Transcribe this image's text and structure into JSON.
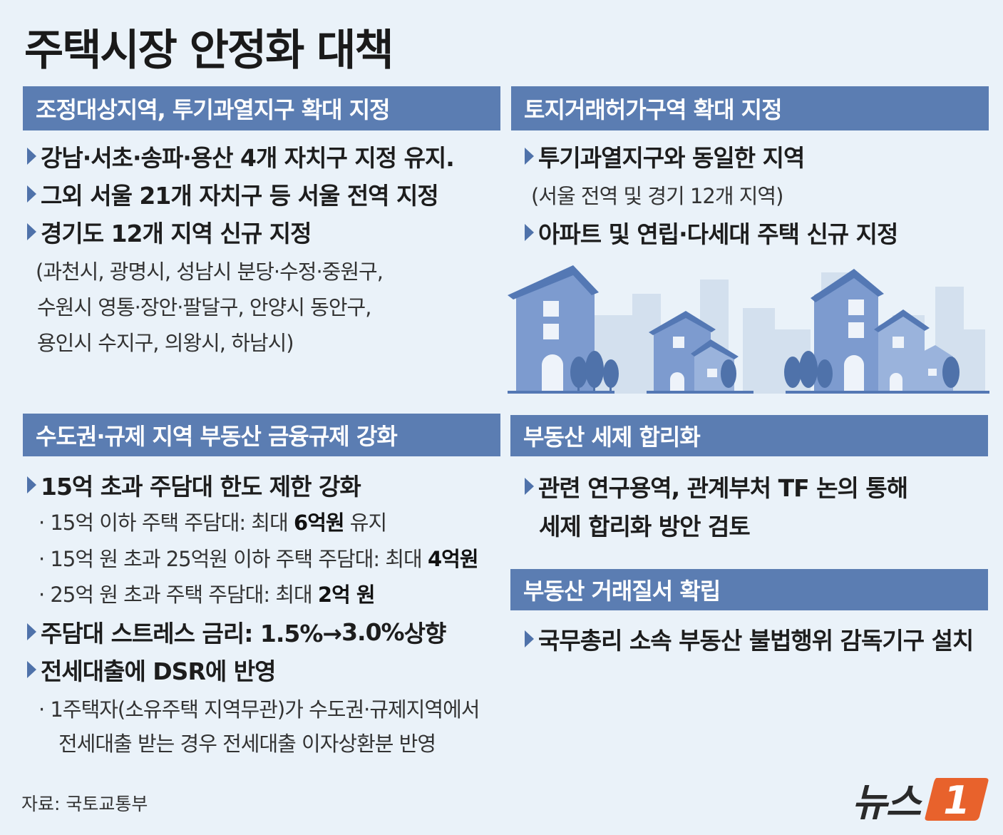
{
  "title": "주택시장 안정화 대책",
  "panels": {
    "regulation": {
      "heading": "조정대상지역, 투기과열지구 확대 지정",
      "bullets": [
        "강남·서초·송파·용산 4개 자치구 지정 유지.",
        "그외 서울 21개 자치구 등 서울 전역 지정",
        "경기도 12개 지역 신규 지정"
      ],
      "detail": [
        "(과천시, 광명시, 성남시 분당·수정·중원구,",
        "수원시 영통·장안·팔달구, 안양시 동안구,",
        "용인시 수지구, 의왕시, 하남시)"
      ]
    },
    "land_permit": {
      "heading": "토지거래허가구역 확대 지정",
      "bullet1": "투기과열지구와 동일한 지역",
      "note": "(서울 전역 및 경기 12개 지역)",
      "bullet2": "아파트 및 연립·다세대 주택 신규 지정"
    },
    "finance": {
      "heading": "수도권·규제 지역 부동산 금융규제 강화",
      "bullet1": "15억 초과 주담대 한도 제한 강화",
      "sub1_text": "· 15억 이하 주택 주담대: 최대 ",
      "sub1_bold": "6억원",
      "sub1_tail": " 유지",
      "sub2_text": "· 15억 원 초과 25억원 이하 주택 주담대: 최대 ",
      "sub2_bold": "4억원",
      "sub3_text": "· 25억 원 초과 주택 주담대: 최대 ",
      "sub3_bold": "2억 원",
      "bullet2_text": "주담대 스트레스 금리: 1.5%→",
      "bullet2_bold": "3.0%",
      "bullet2_tail": " 상향",
      "bullet3": "전세대출에 DSR에 반영",
      "sub4_line1": "· 1주택자(소유주택 지역무관)가 수도권·규제지역에서",
      "sub4_line2": "전세대출 받는 경우 전세대출 이자상환분 반영"
    },
    "tax": {
      "heading": "부동산 세제 합리화",
      "bullet_line1": "관련 연구용역, 관계부처 TF 논의 통해",
      "bullet_line2": "세제 합리화 방안 검토"
    },
    "order": {
      "heading": "부동산 거래질서 확립",
      "bullet": "국무총리 소속 부동산 불법행위 감독기구 설치"
    }
  },
  "source": "자료: 국토교통부",
  "logo": {
    "text": "뉴스",
    "mark": "1",
    "mark_color": "#e8622c"
  },
  "colors": {
    "panel_header": "#5b7db2",
    "background": "#eaf2f9",
    "arrow": "#4f72aa"
  },
  "icons": [
    "triangle-bullet-icon",
    "houses-illustration",
    "news1-logo-icon"
  ]
}
